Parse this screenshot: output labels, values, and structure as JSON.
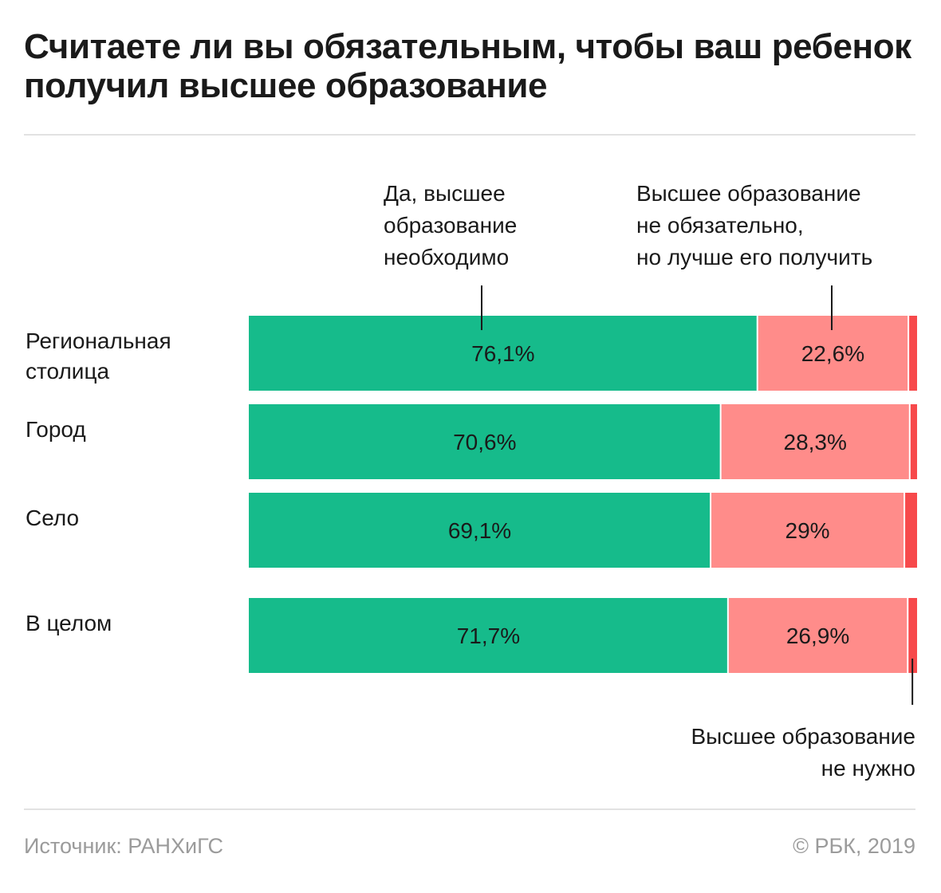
{
  "chart_data": {
    "type": "bar",
    "stacked": true,
    "orientation": "horizontal",
    "title": "Считаете ли вы обязательным, чтобы ваш ребенок получил высшее образование",
    "categories": [
      "Региональная столица",
      "Город",
      "Село",
      "В целом"
    ],
    "category_lines": [
      [
        "Региональная",
        "столица"
      ],
      [
        "Город"
      ],
      [
        "Село"
      ],
      [
        "В целом"
      ]
    ],
    "series": [
      {
        "name": "Да, высшее образование необходимо",
        "name_lines": [
          "Да, высшее",
          "образование",
          "необходимо"
        ],
        "color": "#16bb8b",
        "values": [
          76.1,
          70.6,
          69.1,
          71.7
        ],
        "labels": [
          "76,1%",
          "70,6%",
          "69,1%",
          "71,7%"
        ]
      },
      {
        "name": "Высшее образование не обязательно, но лучше его получить",
        "name_lines": [
          "Высшее образование",
          "не обязательно,",
          "но лучше его получить"
        ],
        "color": "#ff8c8a",
        "values": [
          22.6,
          28.3,
          29.0,
          26.9
        ],
        "labels": [
          "22,6%",
          "28,3%",
          "29%",
          "26,9%"
        ]
      },
      {
        "name": "Высшее образование не нужно",
        "name_lines": [
          "Высшее образование",
          "не нужно"
        ],
        "color": "#f7494b",
        "values": [
          1.3,
          1.1,
          1.9,
          1.4
        ]
      }
    ],
    "xlim": [
      0,
      100
    ],
    "grid": false,
    "legend": "annotations"
  },
  "source": "Источник: РАНХиГС",
  "copyright": "© РБК, 2019",
  "colors": {
    "background": "#ffffff",
    "text": "#1a1a1a",
    "muted": "#9b9b9b",
    "divider": "#e2e2e2"
  }
}
